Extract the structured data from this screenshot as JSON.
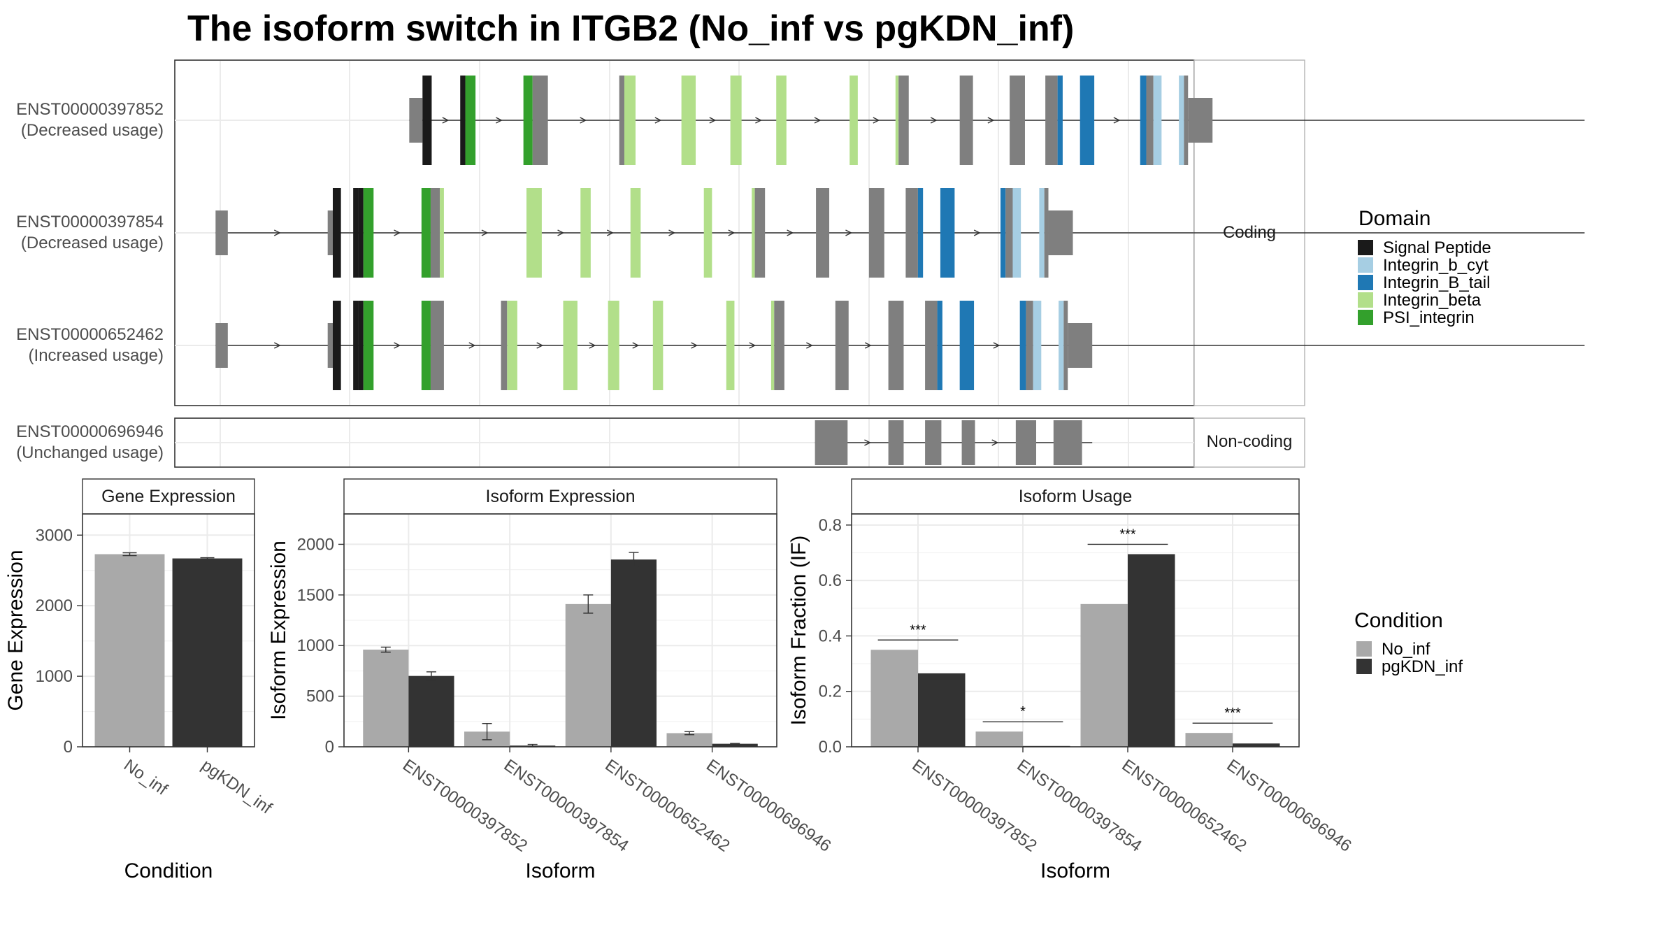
{
  "title": "The isoform switch in ITGB2 (No_inf vs pgKDN_inf)",
  "structure": {
    "coding_label": "Coding",
    "noncoding_label": "Non-coding",
    "genomic_axis": [
      0,
      1000
    ],
    "transcripts": [
      {
        "id": "ENST00000397852",
        "usage": "(Decreased usage)",
        "panel": "coding",
        "start": 230,
        "end": 1383,
        "exons": [
          [
            230,
            243,
            "utr"
          ],
          [
            243,
            252,
            "Signal Peptide"
          ],
          [
            280,
            285,
            "Signal Peptide"
          ],
          [
            285,
            295,
            "PSI_integrin"
          ],
          [
            342,
            351,
            "PSI_integrin"
          ],
          [
            351,
            366,
            "cds"
          ],
          [
            436,
            441,
            "cds"
          ],
          [
            441,
            452,
            "Integrin_beta"
          ],
          [
            497,
            511,
            "Integrin_beta"
          ],
          [
            545,
            556,
            "Integrin_beta"
          ],
          [
            590,
            600,
            "Integrin_beta"
          ],
          [
            662,
            670,
            "Integrin_beta"
          ],
          [
            707,
            710,
            "Integrin_beta"
          ],
          [
            710,
            720,
            "cds"
          ],
          [
            770,
            783,
            "cds"
          ],
          [
            819,
            834,
            "cds"
          ],
          [
            854,
            866,
            "cds"
          ],
          [
            866,
            871,
            "Integrin_B_tail"
          ],
          [
            888,
            902,
            "Integrin_B_tail"
          ],
          [
            947,
            953,
            "Integrin_B_tail"
          ],
          [
            953,
            960,
            "cds"
          ],
          [
            960,
            968,
            "Integrin_b_cyt"
          ],
          [
            985,
            990,
            "Integrin_b_cyt"
          ],
          [
            990,
            994,
            "cds"
          ],
          [
            994,
            1018,
            "utr"
          ]
        ]
      },
      {
        "id": "ENST00000397854",
        "usage": "(Decreased usage)",
        "panel": "coding",
        "start": 40,
        "end": 1383,
        "exons": [
          [
            40,
            52,
            "utr"
          ],
          [
            150,
            155,
            "utr"
          ],
          [
            155,
            163,
            "Signal Peptide"
          ],
          [
            175,
            180,
            "Signal Peptide"
          ],
          [
            180,
            185,
            "Signal Peptide"
          ],
          [
            185,
            195,
            "PSI_integrin"
          ],
          [
            242,
            251,
            "PSI_integrin"
          ],
          [
            251,
            260,
            "cds"
          ],
          [
            260,
            264,
            "Integrin_beta"
          ],
          [
            345,
            360,
            "Integrin_beta"
          ],
          [
            398,
            408,
            "Integrin_beta"
          ],
          [
            447,
            457,
            "Integrin_beta"
          ],
          [
            519,
            527,
            "Integrin_beta"
          ],
          [
            566,
            569,
            "Integrin_beta"
          ],
          [
            569,
            579,
            "cds"
          ],
          [
            629,
            642,
            "cds"
          ],
          [
            681,
            696,
            "cds"
          ],
          [
            717,
            729,
            "cds"
          ],
          [
            729,
            734,
            "Integrin_B_tail"
          ],
          [
            751,
            765,
            "Integrin_B_tail"
          ],
          [
            810,
            815,
            "Integrin_B_tail"
          ],
          [
            815,
            822,
            "cds"
          ],
          [
            822,
            830,
            "Integrin_b_cyt"
          ],
          [
            848,
            853,
            "Integrin_b_cyt"
          ],
          [
            853,
            857,
            "cds"
          ],
          [
            857,
            881,
            "utr"
          ]
        ]
      },
      {
        "id": "ENST00000652462",
        "usage": "(Increased usage)",
        "panel": "coding",
        "start": 40,
        "end": 1383,
        "exons": [
          [
            40,
            52,
            "utr"
          ],
          [
            150,
            155,
            "utr"
          ],
          [
            155,
            163,
            "Signal Peptide"
          ],
          [
            175,
            180,
            "Signal Peptide"
          ],
          [
            180,
            185,
            "Signal Peptide"
          ],
          [
            185,
            195,
            "PSI_integrin"
          ],
          [
            242,
            251,
            "PSI_integrin"
          ],
          [
            251,
            264,
            "cds"
          ],
          [
            320,
            326,
            "cds"
          ],
          [
            326,
            336,
            "Integrin_beta"
          ],
          [
            381,
            395,
            "Integrin_beta"
          ],
          [
            425,
            436,
            "Integrin_beta"
          ],
          [
            469,
            479,
            "Integrin_beta"
          ],
          [
            541,
            549,
            "Integrin_beta"
          ],
          [
            585,
            588,
            "Integrin_beta"
          ],
          [
            588,
            598,
            "cds"
          ],
          [
            648,
            661,
            "cds"
          ],
          [
            700,
            715,
            "cds"
          ],
          [
            736,
            748,
            "cds"
          ],
          [
            748,
            753,
            "Integrin_B_tail"
          ],
          [
            770,
            784,
            "Integrin_B_tail"
          ],
          [
            829,
            835,
            "Integrin_B_tail"
          ],
          [
            835,
            842,
            "cds"
          ],
          [
            842,
            850,
            "Integrin_b_cyt"
          ],
          [
            867,
            872,
            "Integrin_b_cyt"
          ],
          [
            872,
            876,
            "cds"
          ],
          [
            876,
            900,
            "utr"
          ]
        ]
      },
      {
        "id": "ENST00000696946",
        "usage": "(Unchanged usage)",
        "panel": "noncoding",
        "start": 628,
        "end": 900,
        "exons": [
          [
            628,
            660,
            "nc"
          ],
          [
            700,
            715,
            "nc"
          ],
          [
            736,
            752,
            "nc"
          ],
          [
            772,
            785,
            "nc"
          ],
          [
            825,
            845,
            "nc"
          ],
          [
            862,
            890,
            "nc"
          ]
        ]
      }
    ]
  },
  "domain_legend": {
    "title": "Domain",
    "items": [
      {
        "label": "Signal Peptide",
        "color": "#1a1a1a"
      },
      {
        "label": "Integrin_b_cyt",
        "color": "#a6cee3"
      },
      {
        "label": "Integrin_B_tail",
        "color": "#1f78b4"
      },
      {
        "label": "Integrin_beta",
        "color": "#b2df8a"
      },
      {
        "label": "PSI_integrin",
        "color": "#33a02c"
      }
    ]
  },
  "condition_legend": {
    "title": "Condition",
    "items": [
      {
        "label": "No_inf",
        "color": "#a9a9a9"
      },
      {
        "label": "pgKDN_inf",
        "color": "#333333"
      }
    ]
  },
  "chart_data": [
    {
      "type": "bar",
      "title": "Gene Expression",
      "xlabel": "Condition",
      "ylabel": "Gene Expression",
      "categories": [
        "No_inf",
        "pgKDN_inf"
      ],
      "values": [
        2730,
        2670
      ],
      "errors": [
        20,
        10
      ],
      "colors": [
        "#a9a9a9",
        "#333333"
      ],
      "ylim": [
        0,
        3300
      ],
      "yticks": [
        0,
        1000,
        2000,
        3000
      ]
    },
    {
      "type": "bar",
      "title": "Isoform Expression",
      "xlabel": "Isoform",
      "ylabel": "Isoform Expression",
      "categories": [
        "ENST00000397852",
        "ENST00000397854",
        "ENST00000652462",
        "ENST00000696946"
      ],
      "series": [
        {
          "name": "No_inf",
          "values": [
            960,
            150,
            1410,
            135
          ],
          "errors": [
            25,
            80,
            90,
            15
          ]
        },
        {
          "name": "pgKDN_inf",
          "values": [
            700,
            12,
            1850,
            30
          ],
          "errors": [
            40,
            12,
            70,
            3
          ]
        }
      ],
      "ylim": [
        0,
        2300
      ],
      "yticks": [
        0,
        500,
        1000,
        1500,
        2000
      ]
    },
    {
      "type": "bar",
      "title": "Isoform Usage",
      "xlabel": "Isoform",
      "ylabel": "Isoform Fraction (IF)",
      "categories": [
        "ENST00000397852",
        "ENST00000397854",
        "ENST00000652462",
        "ENST00000696946"
      ],
      "series": [
        {
          "name": "No_inf",
          "values": [
            0.35,
            0.055,
            0.515,
            0.05
          ]
        },
        {
          "name": "pgKDN_inf",
          "values": [
            0.265,
            0.003,
            0.695,
            0.012
          ]
        }
      ],
      "significance": [
        "***",
        "*",
        "***",
        "***"
      ],
      "ylim": [
        0,
        0.84
      ],
      "yticks": [
        0.0,
        0.2,
        0.4,
        0.6,
        0.8
      ]
    }
  ]
}
